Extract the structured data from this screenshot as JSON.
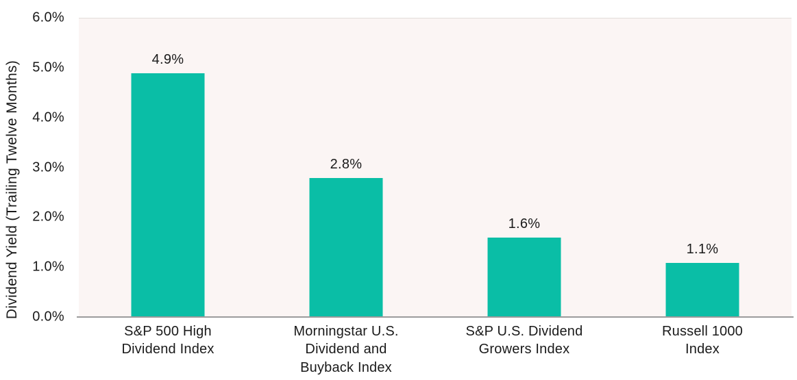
{
  "chart_data": {
    "type": "bar",
    "title": "",
    "xlabel": "",
    "ylabel": "Dividend Yield (Trailing Twelve Months)",
    "categories": [
      "S&P 500 High\nDividend Index",
      "Morningstar U.S.\nDividend and\nBuyback Index",
      "S&P U.S. Dividend\nGrowers Index",
      "Russell 1000\nIndex"
    ],
    "values": [
      4.9,
      2.8,
      1.6,
      1.1
    ],
    "value_labels": [
      "4.9%",
      "2.8%",
      "1.6%",
      "1.1%"
    ],
    "ytick_labels": [
      "6.0%",
      "5.0%",
      "4.0%",
      "3.0%",
      "2.0%",
      "1.0%",
      "0.0%"
    ],
    "ylim": [
      0,
      6
    ],
    "grid": false,
    "legend": null,
    "colors": {
      "bar": "#0ABEA6",
      "plot_background": "#FBF5F4",
      "axis_line": "#9B9B9B",
      "text": "#1A1A1A"
    }
  }
}
